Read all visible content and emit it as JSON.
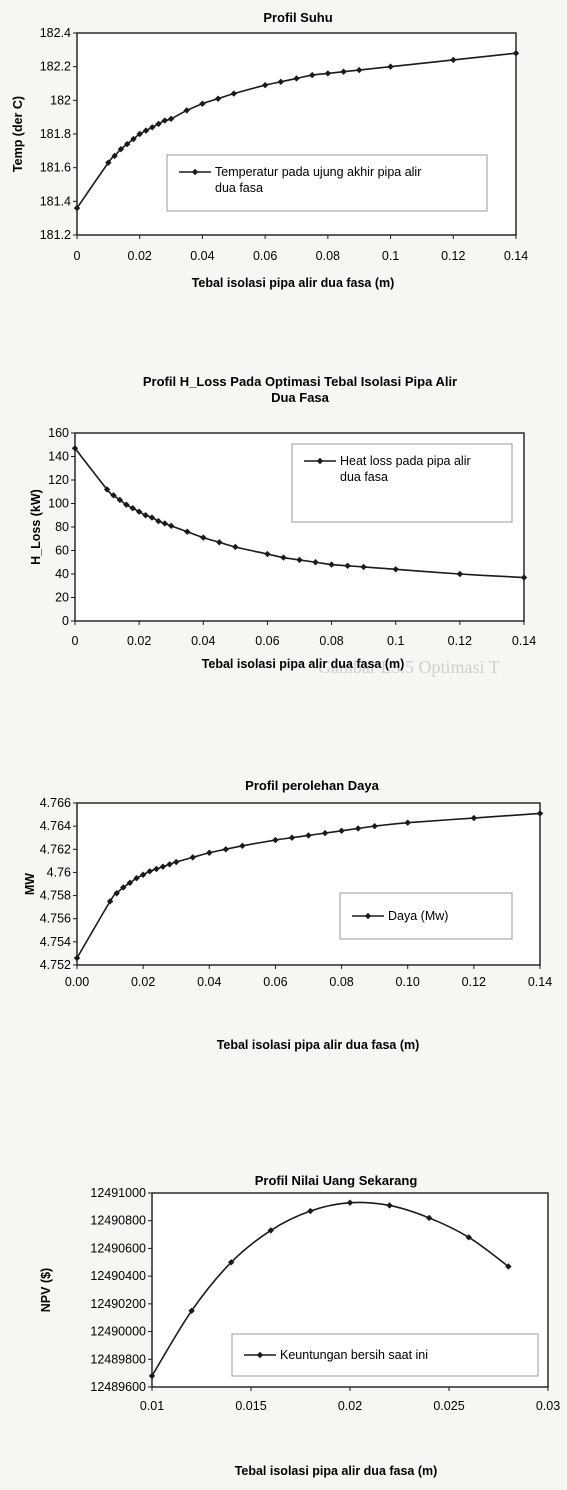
{
  "chart_data": [
    {
      "type": "line",
      "title": "Profil Suhu",
      "xlabel": "Tebal isolasi pipa alir dua fasa (m)",
      "ylabel": "Temp (der C)",
      "xlim": [
        0,
        0.14
      ],
      "ylim": [
        181.2,
        182.4
      ],
      "x_ticks": [
        "0",
        "0.02",
        "0.04",
        "0.06",
        "0.08",
        "0.1",
        "0.12",
        "0.14"
      ],
      "y_ticks": [
        "181.2",
        "181.4",
        "181.6",
        "181.8",
        "182",
        "182.2",
        "182.4"
      ],
      "legend_position": "inside-center-right",
      "series": [
        {
          "name": "Temperatur pada ujung akhir pipa alir dua fasa",
          "color": "#1a1a1a",
          "x": [
            0,
            0.01,
            0.012,
            0.014,
            0.016,
            0.018,
            0.02,
            0.022,
            0.024,
            0.026,
            0.028,
            0.03,
            0.035,
            0.04,
            0.045,
            0.05,
            0.06,
            0.065,
            0.07,
            0.075,
            0.08,
            0.085,
            0.09,
            0.1,
            0.12,
            0.14
          ],
          "y": [
            181.36,
            181.63,
            181.67,
            181.71,
            181.74,
            181.77,
            181.8,
            181.82,
            181.84,
            181.86,
            181.88,
            181.89,
            181.94,
            181.98,
            182.01,
            182.04,
            182.09,
            182.11,
            182.13,
            182.15,
            182.16,
            182.17,
            182.18,
            182.2,
            182.24,
            182.28
          ]
        }
      ]
    },
    {
      "type": "line",
      "title": "Profil H_Loss  Pada Optimasi Tebal Isolasi Pipa Alir Dua  Fasa",
      "xlabel": "Tebal isolasi pipa alir dua fasa (m)",
      "ylabel": "H_Loss (kW)",
      "xlim": [
        0,
        0.14
      ],
      "ylim": [
        0,
        160
      ],
      "x_ticks": [
        "0",
        "0.02",
        "0.04",
        "0.06",
        "0.08",
        "0.1",
        "0.12",
        "0.14"
      ],
      "y_ticks": [
        "0",
        "20",
        "40",
        "60",
        "80",
        "100",
        "120",
        "140",
        "160"
      ],
      "legend_position": "top-right",
      "series": [
        {
          "name": "Heat loss pada pipa alir dua fasa",
          "color": "#1a1a1a",
          "x": [
            0,
            0.01,
            0.012,
            0.014,
            0.016,
            0.018,
            0.02,
            0.022,
            0.024,
            0.026,
            0.028,
            0.03,
            0.035,
            0.04,
            0.045,
            0.05,
            0.06,
            0.065,
            0.07,
            0.075,
            0.08,
            0.085,
            0.09,
            0.1,
            0.12,
            0.14
          ],
          "y": [
            147,
            112,
            107,
            103,
            99,
            96,
            93,
            90,
            88,
            85,
            83,
            81,
            76,
            71,
            67,
            63,
            57,
            54,
            52,
            50,
            48,
            47,
            46,
            44,
            40,
            37
          ]
        }
      ]
    },
    {
      "type": "line",
      "title": "Profil perolehan Daya",
      "xlabel": "Tebal isolasi pipa alir  dua fasa (m)",
      "ylabel": "MW",
      "xlim": [
        0,
        0.14
      ],
      "ylim": [
        4.752,
        4.766
      ],
      "x_ticks": [
        "0.00",
        "0.02",
        "0.04",
        "0.06",
        "0.08",
        "0.10",
        "0.12",
        "0.14"
      ],
      "y_ticks": [
        "4.752",
        "4.754",
        "4.756",
        "4.758",
        "4.76",
        "4.762",
        "4.764",
        "4.766"
      ],
      "legend_position": "bottom-right",
      "series": [
        {
          "name": "Daya (Mw)",
          "color": "#1a1a1a",
          "x": [
            0,
            0.01,
            0.012,
            0.014,
            0.016,
            0.018,
            0.02,
            0.022,
            0.024,
            0.026,
            0.028,
            0.03,
            0.035,
            0.04,
            0.045,
            0.05,
            0.06,
            0.065,
            0.07,
            0.075,
            0.08,
            0.085,
            0.09,
            0.1,
            0.12,
            0.14
          ],
          "y": [
            4.7526,
            4.7575,
            4.7582,
            4.7587,
            4.7591,
            4.7595,
            4.7598,
            4.7601,
            4.7603,
            4.7605,
            4.7607,
            4.7609,
            4.7613,
            4.7617,
            4.762,
            4.7623,
            4.7628,
            4.763,
            4.7632,
            4.7634,
            4.7636,
            4.7638,
            4.764,
            4.7643,
            4.7647,
            4.7651
          ]
        }
      ]
    },
    {
      "type": "line",
      "title": "Profil Nilai Uang Sekarang",
      "xlabel": "Tebal isolasi pipa alir dua fasa (m)",
      "ylabel": "NPV ($)",
      "xlim": [
        0.01,
        0.03
      ],
      "ylim": [
        12489600,
        12491000
      ],
      "x_ticks": [
        "0.01",
        "0.015",
        "0.02",
        "0.025",
        "0.03"
      ],
      "y_ticks": [
        "12489600",
        "12489800",
        "12490000",
        "12490200",
        "12490400",
        "12490600",
        "12490800",
        "12491000"
      ],
      "legend_position": "bottom-right",
      "series": [
        {
          "name": "Keuntungan bersih saat ini",
          "color": "#1a1a1a",
          "x": [
            0.01,
            0.012,
            0.014,
            0.016,
            0.018,
            0.02,
            0.022,
            0.024,
            0.026,
            0.028
          ],
          "y": [
            12489680,
            12490150,
            12490500,
            12490730,
            12490870,
            12490930,
            12490910,
            12490820,
            12490680,
            12490470
          ]
        }
      ]
    }
  ],
  "background_text": [
    "Gambar L3.5 Optimasi T"
  ]
}
